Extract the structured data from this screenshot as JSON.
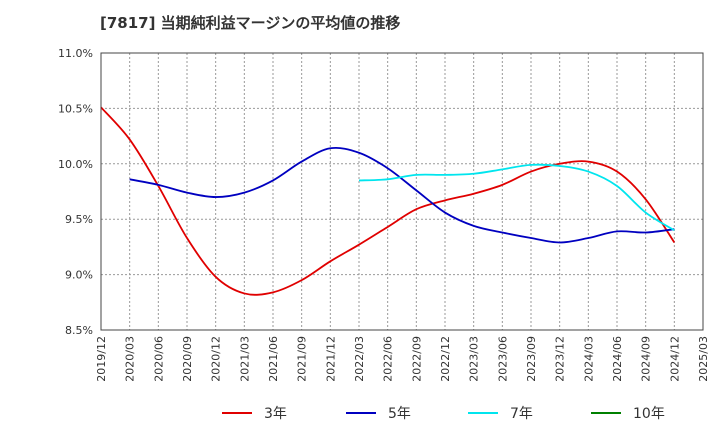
{
  "title": "[7817]  当期純利益マージンの平均値の推移",
  "chart_data": {
    "type": "line",
    "ylim": [
      8.5,
      11.0
    ],
    "xlim": [
      "2019/12",
      "2025/03"
    ],
    "y_ticks": [
      "8.5%",
      "9.0%",
      "9.5%",
      "10.0%",
      "10.5%",
      "11.0%"
    ],
    "x_ticks": [
      "2019/12",
      "2020/03",
      "2020/06",
      "2020/09",
      "2020/12",
      "2021/03",
      "2021/06",
      "2021/09",
      "2021/12",
      "2022/03",
      "2022/06",
      "2022/09",
      "2022/12",
      "2023/03",
      "2023/06",
      "2023/09",
      "2023/12",
      "2024/03",
      "2024/06",
      "2024/09",
      "2024/12",
      "2025/03"
    ],
    "grid": true,
    "legend_position": "bottom",
    "series": [
      {
        "name": "3年",
        "color": "#e00000",
        "x": [
          "2019/12",
          "2020/03",
          "2020/06",
          "2020/09",
          "2020/12",
          "2021/03",
          "2021/06",
          "2021/09",
          "2021/12",
          "2022/03",
          "2022/06",
          "2022/09",
          "2022/12",
          "2023/03",
          "2023/06",
          "2023/09",
          "2023/12",
          "2024/03",
          "2024/06",
          "2024/09",
          "2024/12"
        ],
        "values": [
          10.51,
          10.22,
          9.8,
          9.33,
          8.98,
          8.83,
          8.84,
          8.95,
          9.12,
          9.27,
          9.43,
          9.59,
          9.67,
          9.73,
          9.81,
          9.93,
          10.0,
          10.02,
          9.93,
          9.68,
          9.29
        ]
      },
      {
        "name": "5年",
        "color": "#0000c0",
        "x": [
          "2020/03",
          "2020/06",
          "2020/09",
          "2020/12",
          "2021/03",
          "2021/06",
          "2021/09",
          "2021/12",
          "2022/03",
          "2022/06",
          "2022/09",
          "2022/12",
          "2023/03",
          "2023/06",
          "2023/09",
          "2023/12",
          "2024/03",
          "2024/06",
          "2024/09",
          "2024/12"
        ],
        "values": [
          9.86,
          9.81,
          9.74,
          9.7,
          9.74,
          9.85,
          10.02,
          10.14,
          10.1,
          9.96,
          9.76,
          9.56,
          9.44,
          9.38,
          9.33,
          9.29,
          9.33,
          9.39,
          9.38,
          9.41
        ]
      },
      {
        "name": "7年",
        "color": "#00e5ee",
        "x": [
          "2022/03",
          "2022/06",
          "2022/09",
          "2022/12",
          "2023/03",
          "2023/06",
          "2023/09",
          "2023/12",
          "2024/03",
          "2024/06",
          "2024/09",
          "2024/12"
        ],
        "values": [
          9.85,
          9.86,
          9.9,
          9.9,
          9.91,
          9.95,
          9.99,
          9.98,
          9.93,
          9.8,
          9.56,
          9.4
        ]
      },
      {
        "name": "10年",
        "color": "#008000",
        "x": [],
        "values": []
      }
    ]
  }
}
